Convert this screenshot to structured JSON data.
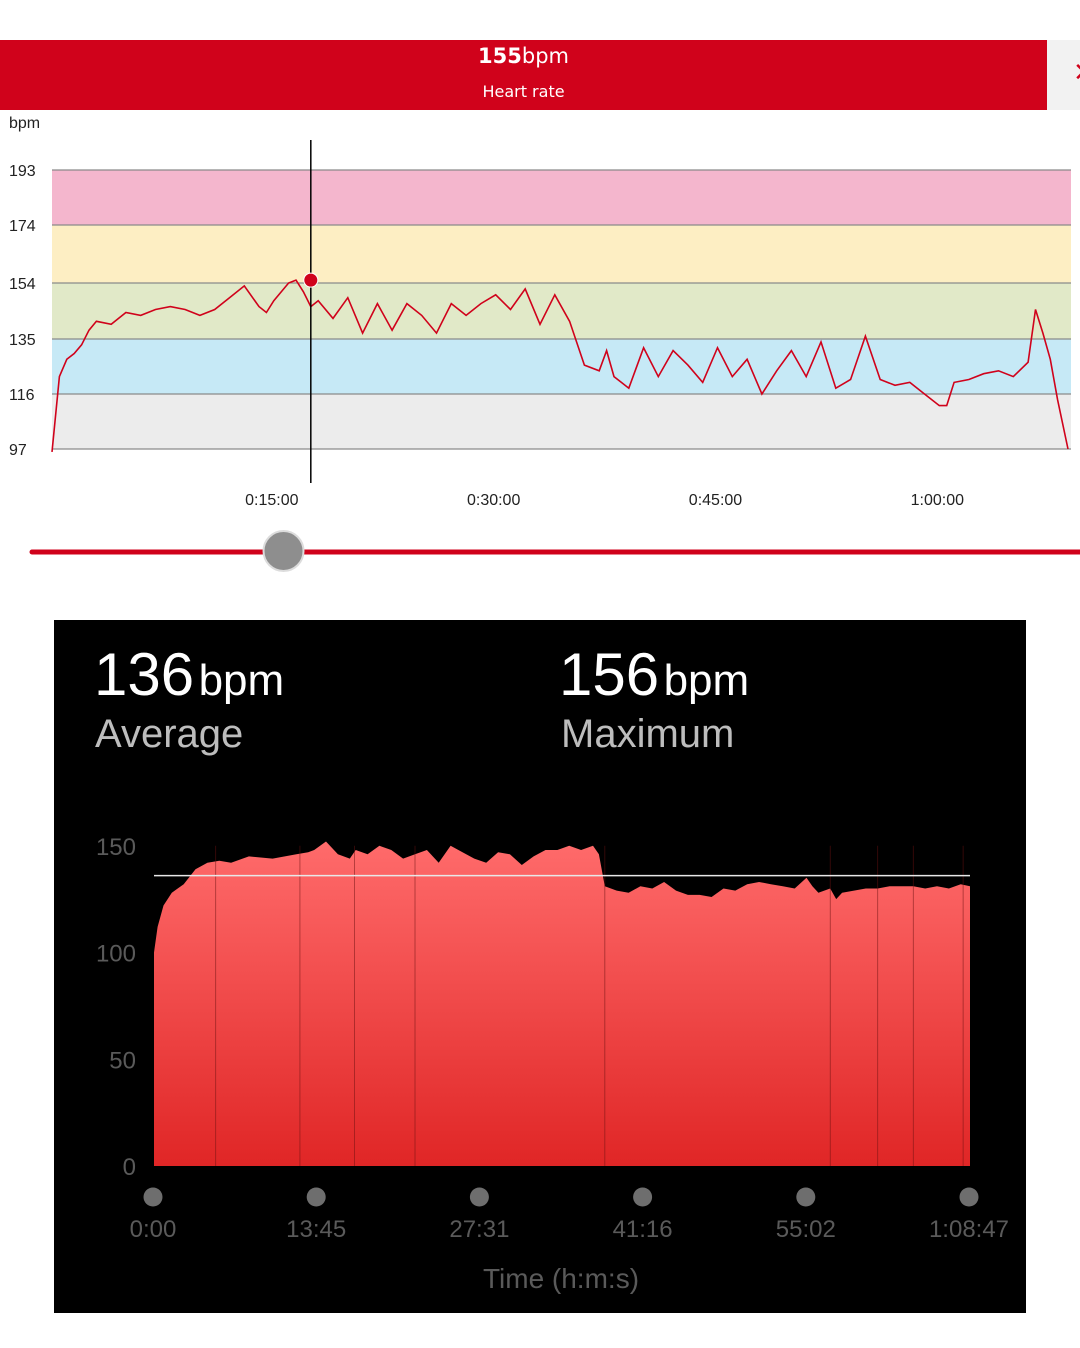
{
  "header": {
    "value": "155",
    "unit": "bpm",
    "label": "Heart rate",
    "accent": "#d0021b"
  },
  "icons": {
    "close": "close-icon"
  },
  "top_chart": {
    "y_unit_label": "bpm",
    "y_ticks": [
      "193",
      "174",
      "154",
      "135",
      "116",
      "97"
    ],
    "x_ticks": [
      "0:15:00",
      "0:30:00",
      "0:45:00",
      "1:00:00"
    ],
    "zones": [
      {
        "from": 174,
        "to": 193,
        "color": "#f4b6cd"
      },
      {
        "from": 154,
        "to": 174,
        "color": "#fdeec3"
      },
      {
        "from": 135,
        "to": 154,
        "color": "#e1e9c8"
      },
      {
        "from": 116,
        "to": 135,
        "color": "#c6e9f6"
      },
      {
        "from": 97,
        "to": 116,
        "color": "#ececec"
      }
    ],
    "selected_time": "0:17:30",
    "selected_value": 155,
    "slider_position": 0.24
  },
  "summary": {
    "average_value": "136",
    "average_unit": "bpm",
    "average_label": "Average",
    "maximum_value": "156",
    "maximum_unit": "bpm",
    "maximum_label": "Maximum"
  },
  "bottom_chart": {
    "y_ticks": [
      "150",
      "100",
      "50",
      "0"
    ],
    "x_ticks": [
      "0:00",
      "13:45",
      "27:31",
      "41:16",
      "55:02",
      "1:08:47"
    ],
    "x_label": "Time (h:m:s)",
    "average_line": 136
  },
  "chart_data": [
    {
      "type": "line",
      "ylabel": "bpm",
      "x_unit": "minutes",
      "ylim": [
        97,
        193
      ],
      "xlim": [
        0,
        68.7
      ],
      "x_tick_labels": [
        "0:15:00",
        "0:30:00",
        "0:45:00",
        "1:00:00"
      ],
      "series": [
        {
          "color": "#d0021b",
          "x": [
            0,
            0.5,
            1,
            1.5,
            2,
            2.5,
            3,
            4,
            5,
            6,
            7,
            8,
            9,
            10,
            11,
            12,
            13,
            14,
            14.5,
            15,
            16,
            16.5,
            17,
            17.5,
            18,
            19,
            20,
            21,
            22,
            23,
            24,
            25,
            26,
            27,
            28,
            29,
            30,
            31,
            32,
            33,
            34,
            35,
            36,
            37,
            37.5,
            38,
            39,
            40,
            41,
            42,
            43,
            44,
            45,
            46,
            47,
            48,
            49,
            50,
            51,
            52,
            53,
            54,
            55,
            56,
            57,
            58,
            59,
            60,
            60.5,
            61,
            62,
            63,
            64,
            65,
            66,
            66.5,
            67,
            67.5,
            68,
            68.7
          ],
          "y": [
            96,
            122,
            128,
            130,
            133,
            138,
            141,
            140,
            144,
            143,
            145,
            146,
            145,
            143,
            145,
            149,
            153,
            146,
            144,
            148,
            154,
            155,
            151,
            146,
            148,
            142,
            149,
            137,
            147,
            138,
            147,
            143,
            137,
            147,
            143,
            147,
            150,
            145,
            152,
            140,
            150,
            141,
            126,
            124,
            131,
            122,
            118,
            132,
            122,
            131,
            126,
            120,
            132,
            122,
            128,
            116,
            124,
            131,
            122,
            134,
            118,
            121,
            136,
            121,
            119,
            120,
            116,
            112,
            112,
            120,
            121,
            123,
            124,
            122,
            127,
            145,
            137,
            128,
            114,
            97
          ]
        }
      ]
    },
    {
      "type": "area",
      "ylabel": "",
      "xlabel": "Time (h:m:s)",
      "x_unit": "minutes",
      "ylim": [
        0,
        160
      ],
      "xlim": [
        0,
        68.78
      ],
      "x_tick_labels": [
        "0:00",
        "13:45",
        "27:31",
        "41:16",
        "55:02",
        "1:08:47"
      ],
      "average": 136,
      "maximum": 156,
      "series": [
        {
          "color": "#f25c5c",
          "x": [
            0,
            0.3,
            0.8,
            1.5,
            2.5,
            3.5,
            4.5,
            5.5,
            6.5,
            8,
            10,
            12,
            13,
            13.5,
            14.5,
            15.5,
            16.5,
            17,
            18,
            19,
            20,
            21,
            22,
            23,
            24,
            25,
            26,
            27,
            28,
            29,
            30,
            31,
            32,
            33,
            34,
            35,
            36,
            37,
            37.5,
            38,
            39,
            40,
            41,
            42,
            43,
            44,
            45,
            46,
            47,
            48,
            49,
            50,
            51,
            52,
            53,
            54,
            55,
            55.5,
            56,
            57,
            57.5,
            58,
            59,
            60,
            61,
            62,
            63,
            64,
            65,
            66,
            67,
            68,
            68.78
          ],
          "y": [
            100,
            112,
            122,
            128,
            132,
            139,
            142,
            143,
            142,
            145,
            144,
            146,
            147,
            148,
            152,
            146,
            144,
            148,
            146,
            150,
            148,
            144,
            146,
            148,
            142,
            150,
            147,
            144,
            142,
            147,
            146,
            141,
            145,
            148,
            148,
            150,
            148,
            150,
            146,
            131,
            129,
            128,
            131,
            130,
            133,
            129,
            127,
            127,
            126,
            130,
            129,
            132,
            133,
            132,
            131,
            130,
            135,
            131,
            128,
            130,
            125,
            128,
            129,
            130,
            130,
            131,
            131,
            131,
            130,
            131,
            130,
            132,
            131
          ]
        }
      ]
    }
  ]
}
